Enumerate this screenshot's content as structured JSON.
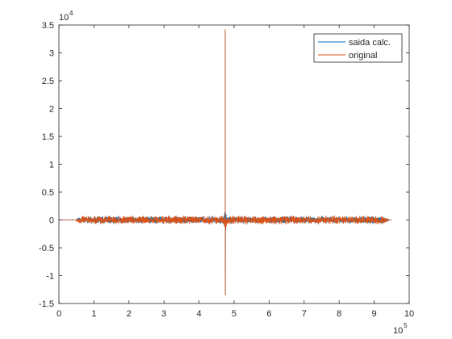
{
  "chart_data": {
    "type": "line",
    "title": "",
    "xlabel": "",
    "ylabel": "",
    "xlim": [
      0,
      10
    ],
    "ylim": [
      -1.5,
      3.5
    ],
    "x_exponent_label": "10",
    "x_exponent_power": "5",
    "y_exponent_label": "10",
    "y_exponent_power": "4",
    "x_ticks": [
      0,
      1,
      2,
      3,
      4,
      5,
      6,
      7,
      8,
      9,
      10
    ],
    "x_tick_labels": [
      "0",
      "1",
      "2",
      "3",
      "4",
      "5",
      "6",
      "7",
      "8",
      "9",
      "10"
    ],
    "y_ticks": [
      -1.5,
      -1,
      -0.5,
      0,
      0.5,
      1,
      1.5,
      2,
      2.5,
      3,
      3.5
    ],
    "y_tick_labels": [
      "-1.5",
      "-1",
      "-0.5",
      "0",
      "0.5",
      "1",
      "1.5",
      "2",
      "2.5",
      "3",
      "3.5"
    ],
    "grid": false,
    "legend_position": "top-right",
    "series": [
      {
        "name": "saida calc.",
        "color": "#0072BD",
        "signal_start": 0.5,
        "signal_end": 9.4,
        "noise_amplitude": 0.05,
        "spike_x": 4.75,
        "spike_max": 3.42,
        "spike_min": -1.35
      },
      {
        "name": "original",
        "color": "#D95319",
        "signal_start": 0.5,
        "signal_end": 9.4,
        "noise_amplitude": 0.06,
        "spike_x": 4.75,
        "spike_max": 3.42,
        "spike_min": -1.35
      }
    ]
  }
}
